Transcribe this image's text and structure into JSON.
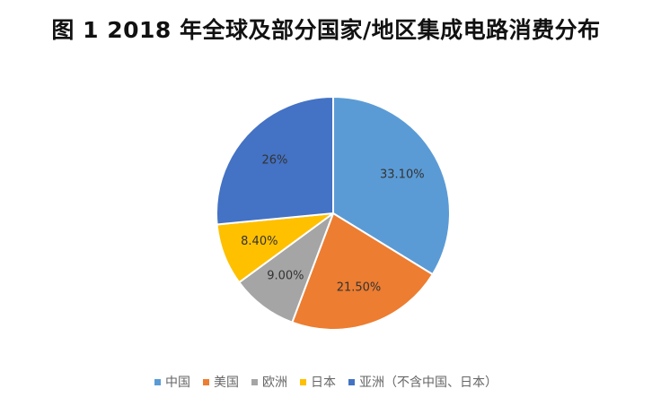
{
  "chart_data": {
    "type": "pie",
    "title": "图 1 2018 年全球及部分国家/地区集成电路消费分布",
    "slices": [
      {
        "name": "中国",
        "value": 33.1,
        "label": "33.10%",
        "color": "#5b9bd5"
      },
      {
        "name": "美国",
        "value": 21.5,
        "label": "21.50%",
        "color": "#ed7d31"
      },
      {
        "name": "欧洲",
        "value": 9.0,
        "label": "9.00%",
        "color": "#a5a5a5"
      },
      {
        "name": "日本",
        "value": 8.4,
        "label": "8.40%",
        "color": "#ffc000"
      },
      {
        "name": "亚洲（不含中国、日本）",
        "value": 26.0,
        "label": "26%",
        "color": "#4472c4"
      }
    ],
    "start": "12 o'clock",
    "direction": "clockwise",
    "legend_position": "bottom"
  }
}
